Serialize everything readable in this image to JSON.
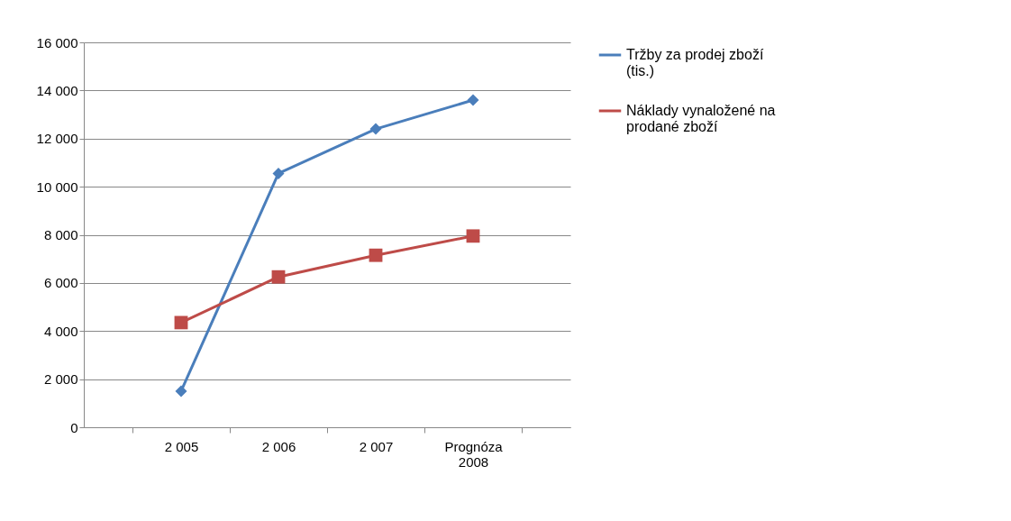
{
  "chart_data": {
    "type": "line",
    "categories": [
      "2 005",
      "2 006",
      "2 007",
      "Prognóza 2008"
    ],
    "series": [
      {
        "name": "Tržby za prodej zboží (tis.)",
        "color": "#4a7ebb",
        "marker": "diamond",
        "values": [
          1500,
          10550,
          12400,
          13600
        ]
      },
      {
        "name": "Náklady vynaložené na prodané zboží",
        "color": "#be4b48",
        "marker": "square",
        "values": [
          4350,
          6250,
          7150,
          7950
        ]
      }
    ],
    "ylim": [
      0,
      16000
    ],
    "yticks": [
      {
        "value": 0,
        "label": "0"
      },
      {
        "value": 2000,
        "label": "2 000"
      },
      {
        "value": 4000,
        "label": "4 000"
      },
      {
        "value": 6000,
        "label": "6 000"
      },
      {
        "value": 8000,
        "label": "8 000"
      },
      {
        "value": 10000,
        "label": "10 000"
      },
      {
        "value": 12000,
        "label": "12 000"
      },
      {
        "value": 14000,
        "label": "14 000"
      },
      {
        "value": 16000,
        "label": "16 000"
      }
    ],
    "grid": "y",
    "legend": "right",
    "line_style": "solid"
  }
}
